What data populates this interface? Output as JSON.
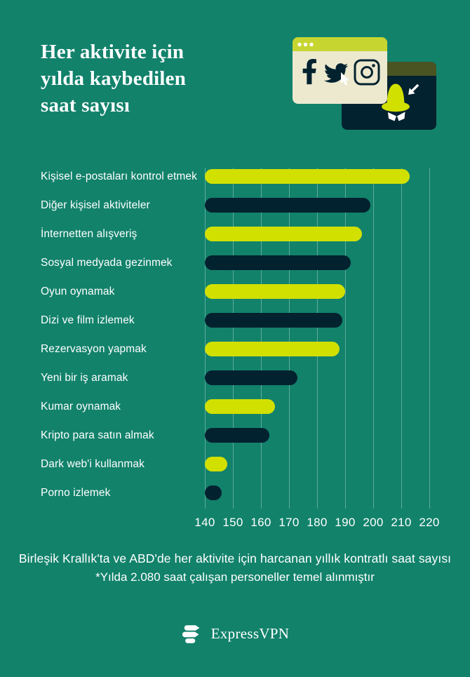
{
  "header": {
    "title": "Her aktivite için\nyılda kaybedilen\nsaat sayısı"
  },
  "illustration": {
    "browser_icons": [
      "facebook-icon",
      "twitter-icon",
      "instagram-icon"
    ],
    "spy": "incognito-spy-hat-icon",
    "cursor_count": 2
  },
  "chart_data": {
    "type": "bar",
    "orientation": "horizontal",
    "title": "Her aktivite için yılda kaybedilen saat sayısı",
    "categories": [
      "Kişisel e-postaları kontrol etmek",
      "Diğer kişisel aktiviteler",
      "İnternetten alışveriş",
      "Sosyal medyada gezinmek",
      "Oyun oynamak",
      "Dizi ve film izlemek",
      "Rezervasyon yapmak",
      "Yeni bir iş aramak",
      "Kumar oynamak",
      "Kripto para satın almak",
      "Dark web'i kullanmak",
      "Porno izlemek"
    ],
    "values": [
      213,
      199,
      196,
      192,
      190,
      189,
      188,
      173,
      165,
      163,
      148,
      146
    ],
    "bar_colors": [
      "#D2E000",
      "#03222F",
      "#D2E000",
      "#03222F",
      "#D2E000",
      "#03222F",
      "#D2E000",
      "#03222F",
      "#D2E000",
      "#03222F",
      "#D2E000",
      "#03222F"
    ],
    "xlim": [
      140,
      220
    ],
    "xticks": [
      140,
      150,
      160,
      170,
      180,
      190,
      200,
      210,
      220
    ],
    "xlabel": "",
    "ylabel": "",
    "grid": "vertical",
    "legend": "none"
  },
  "footer": {
    "line1": "Birleşik Krallık'ta ve ABD'de her aktivite için harcanan yıllık kontratlı saat sayısı",
    "line2": "*Yılda 2.080 saat çalışan personeller temel alınmıştır",
    "logo_text": "ExpressVPN"
  },
  "colors": {
    "background": "#12826B",
    "lime": "#D2E000",
    "navy": "#03222F",
    "cream_window": "#ECE9CF",
    "window_header_lime": "#C7D531",
    "window_header_olive": "#4A5422",
    "gridline": "rgba(255,255,255,0.32)",
    "text": "#FFFFFF"
  }
}
